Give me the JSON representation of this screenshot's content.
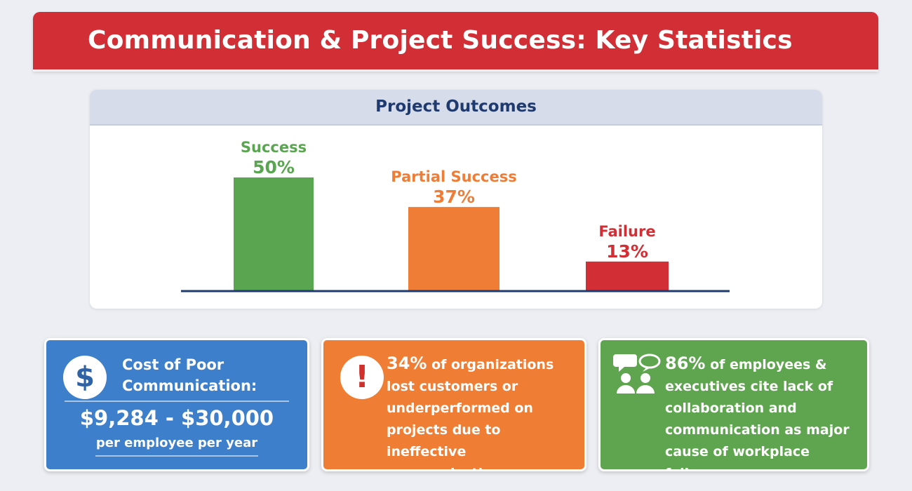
{
  "header": {
    "title": "Communication & Project Success: Key Statistics"
  },
  "chart_data": {
    "type": "bar",
    "title": "Project Outcomes",
    "categories": [
      "Success",
      "Partial Success",
      "Failure"
    ],
    "values": [
      50,
      37,
      13
    ],
    "value_labels": [
      "50%",
      "37%",
      "13%"
    ],
    "colors": [
      "#5aa54f",
      "#f07d35",
      "#d12f35"
    ],
    "ylim": [
      0,
      50
    ],
    "xlabel": "",
    "ylabel": "",
    "grid": false
  },
  "cards": {
    "cost": {
      "icon": "dollar-icon",
      "title": "Cost of Poor Communication:",
      "amount": "$9,284 - $30,000",
      "per": "per employee per year"
    },
    "customers": {
      "icon": "exclamation-icon",
      "stat": "34%",
      "text": " of organizations lost customers or underperformed on projects due to ineffective communication."
    },
    "collaboration": {
      "icon": "people-chat-icon",
      "stat": "86%",
      "text": " of employees & executives cite lack of collaboration and communication as major cause of workplace failures."
    }
  }
}
